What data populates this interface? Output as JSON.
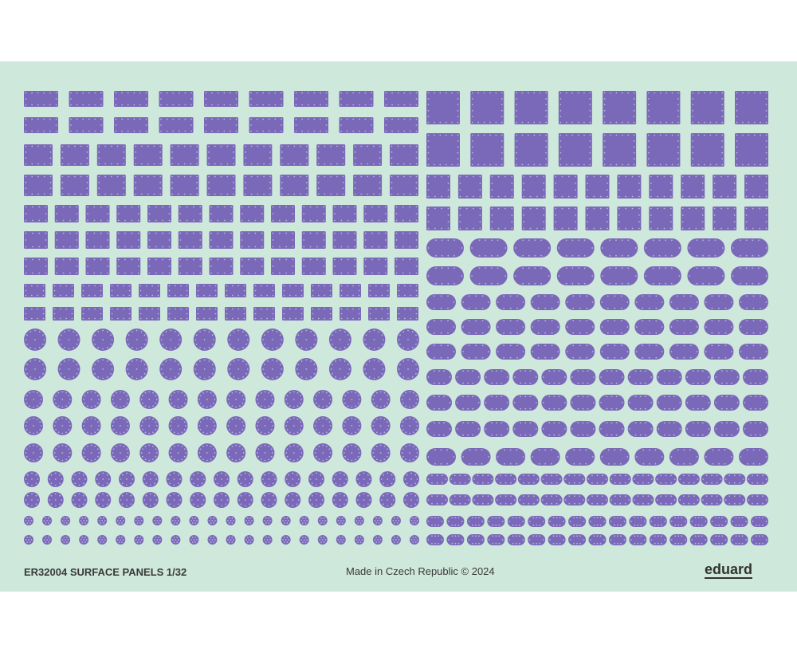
{
  "sheet": {
    "product_code": "ER32004 SURFACE PANELS 1/32",
    "made_in": "Made in Czech Republic  ©  2024",
    "brand": "eduard",
    "colors": {
      "background": "#cfe8dc",
      "panel": "#7a69b8",
      "rivet": "#b9b3de"
    },
    "panel_icon": "riveted-panel"
  }
}
